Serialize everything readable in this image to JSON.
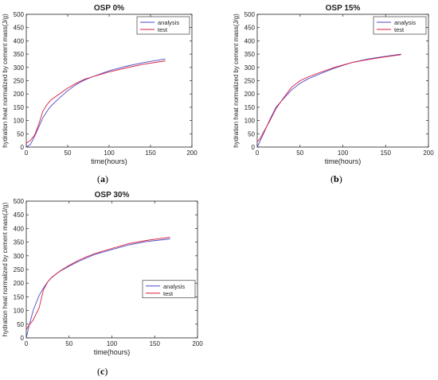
{
  "chart_data": [
    {
      "type": "line",
      "title": "OSP 0%",
      "xlabel": "time(hours)",
      "ylabel": "hydration heat normalized by cement mass(J/g)",
      "xlim": [
        0,
        200
      ],
      "ylim": [
        0,
        500
      ],
      "xticks": [
        0,
        50,
        100,
        150,
        200
      ],
      "yticks": [
        0,
        50,
        100,
        150,
        200,
        250,
        300,
        350,
        400,
        450,
        500
      ],
      "legend_position": "top-right",
      "series": [
        {
          "name": "analysis",
          "color": "#4a4ac8",
          "x": [
            0,
            5,
            10,
            15,
            20,
            25,
            30,
            40,
            50,
            60,
            70,
            80,
            100,
            120,
            140,
            168
          ],
          "y": [
            0,
            10,
            40,
            75,
            110,
            135,
            155,
            185,
            212,
            235,
            252,
            265,
            287,
            304,
            317,
            332
          ]
        },
        {
          "name": "test",
          "color": "#d81b3c",
          "x": [
            0,
            5,
            10,
            15,
            20,
            25,
            30,
            40,
            50,
            60,
            70,
            80,
            100,
            120,
            140,
            168
          ],
          "y": [
            15,
            25,
            45,
            85,
            135,
            160,
            178,
            200,
            222,
            240,
            255,
            265,
            283,
            298,
            311,
            325
          ]
        }
      ],
      "caption": "a"
    },
    {
      "type": "line",
      "title": "OSP 15%",
      "xlabel": "time(hours)",
      "ylabel": "hydration heat normalized by cement mass(J/g)",
      "xlim": [
        0,
        200
      ],
      "ylim": [
        0,
        500
      ],
      "xticks": [
        0,
        50,
        100,
        150,
        200
      ],
      "yticks": [
        0,
        50,
        100,
        150,
        200,
        250,
        300,
        350,
        400,
        450,
        500
      ],
      "legend_position": "top-right",
      "series": [
        {
          "name": "analysis",
          "color": "#4a4ac8",
          "x": [
            0,
            3,
            8,
            15,
            22,
            30,
            40,
            50,
            60,
            75,
            90,
            110,
            130,
            150,
            168
          ],
          "y": [
            0,
            20,
            55,
            105,
            150,
            180,
            215,
            240,
            258,
            278,
            297,
            318,
            332,
            342,
            350
          ]
        },
        {
          "name": "test",
          "color": "#d81b3c",
          "x": [
            0,
            3,
            8,
            15,
            22,
            30,
            40,
            50,
            60,
            75,
            90,
            110,
            130,
            150,
            168
          ],
          "y": [
            20,
            30,
            60,
            100,
            145,
            182,
            225,
            250,
            265,
            283,
            300,
            318,
            330,
            340,
            348
          ]
        }
      ],
      "caption": "b"
    },
    {
      "type": "line",
      "title": "OSP 30%",
      "xlabel": "time(hours)",
      "ylabel": "hydration heat normalized by cement mass(J/g)",
      "xlim": [
        0,
        200
      ],
      "ylim": [
        0,
        500
      ],
      "xticks": [
        0,
        50,
        100,
        150,
        200
      ],
      "yticks": [
        0,
        50,
        100,
        150,
        200,
        250,
        300,
        350,
        400,
        450,
        500
      ],
      "legend_position": "center-right",
      "series": [
        {
          "name": "analysis",
          "color": "#4a4ac8",
          "x": [
            0,
            3,
            8,
            15,
            20,
            25,
            30,
            40,
            50,
            60,
            70,
            80,
            100,
            120,
            140,
            168
          ],
          "y": [
            0,
            40,
            100,
            155,
            182,
            205,
            222,
            245,
            262,
            278,
            292,
            305,
            323,
            340,
            352,
            362
          ]
        },
        {
          "name": "test",
          "color": "#d81b3c",
          "x": [
            0,
            3,
            8,
            15,
            20,
            25,
            30,
            40,
            50,
            60,
            70,
            80,
            100,
            120,
            140,
            168
          ],
          "y": [
            30,
            45,
            65,
            110,
            175,
            205,
            222,
            246,
            265,
            282,
            296,
            308,
            327,
            345,
            356,
            368
          ]
        }
      ],
      "caption": "c"
    }
  ]
}
